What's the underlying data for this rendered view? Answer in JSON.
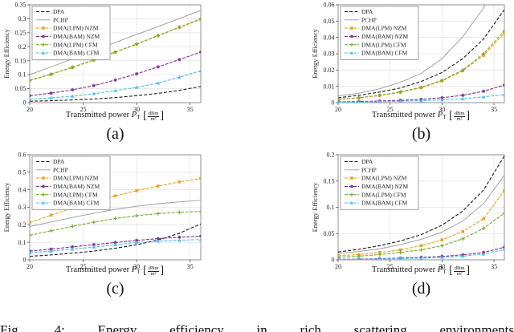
{
  "caption": "Fig. 4: Energy efficiency in rich scattering environments",
  "sub_labels": [
    "(a)",
    "(b)",
    "(c)",
    "(d)"
  ],
  "axes": {
    "ylabel": "Energy Efficiency",
    "x_prefix": "Transmitted power",
    "x_symbol": "P",
    "x_symbol_sub": "T",
    "bracket_open": "[",
    "bracket_close": "]",
    "x_unit_numerator": "dBm",
    "x_unit_denominator": "m²"
  },
  "legend": [
    "DPA",
    "PCHP",
    "DMA(LPM) NZM",
    "DMA(BAM) NZM",
    "DMA(LPM) CFM",
    "DMA(BAM) CFM"
  ],
  "series_styles": {
    "DPA": {
      "color": "#1a1a1a",
      "dash": "4 2.2",
      "marker": "none",
      "width": 1.1
    },
    "PCHP": {
      "color": "#9b9b9b",
      "dash": "",
      "marker": "none",
      "width": 0.9
    },
    "DMA(LPM) NZM": {
      "color": "#eda321",
      "dash": "4 1.6",
      "marker": "square",
      "width": 1.1
    },
    "DMA(BAM) NZM": {
      "color": "#7e2f8e",
      "dash": "4 1.6",
      "marker": "asterisk",
      "width": 1.1
    },
    "DMA(LPM) CFM": {
      "color": "#77ac30",
      "dash": "4 1.6",
      "marker": "plus",
      "width": 1.1
    },
    "DMA(BAM) CFM": {
      "color": "#4dbeee",
      "dash": "4 1.6",
      "marker": "triangle",
      "width": 1.1
    }
  },
  "chart_data": [
    {
      "id": "a",
      "type": "line",
      "sub_label": "(a)",
      "xlim": [
        20,
        36
      ],
      "ylim": [
        0,
        0.35
      ],
      "x_ticks": [
        20,
        25,
        30,
        35
      ],
      "x_tick_labels": [
        "20",
        "25",
        "30",
        "35"
      ],
      "y_tick_values": [
        0,
        0.05,
        0.1,
        0.15,
        0.2,
        0.25,
        0.3,
        0.35
      ],
      "y_tick_labels": [
        "0",
        "0.05",
        "0.1",
        "0.15",
        "0.2",
        "0.25",
        "0.3",
        "0.35"
      ],
      "x": [
        20,
        22,
        24,
        26,
        28,
        30,
        32,
        34,
        36
      ],
      "series": {
        "DPA": [
          0.005,
          0.007,
          0.01,
          0.013,
          0.018,
          0.025,
          0.033,
          0.044,
          0.058
        ],
        "PCHP": [
          0.1,
          0.128,
          0.157,
          0.186,
          0.215,
          0.244,
          0.272,
          0.301,
          0.33
        ],
        "DMA(LPM) NZM": [
          0.079,
          0.101,
          0.126,
          0.152,
          0.18,
          0.209,
          0.239,
          0.269,
          0.298
        ],
        "DMA(BAM) NZM": [
          0.025,
          0.034,
          0.046,
          0.061,
          0.081,
          0.103,
          0.128,
          0.154,
          0.181
        ],
        "DMA(LPM) CFM": [
          0.08,
          0.102,
          0.127,
          0.153,
          0.181,
          0.21,
          0.24,
          0.27,
          0.3
        ],
        "DMA(BAM) CFM": [
          0.012,
          0.017,
          0.023,
          0.032,
          0.043,
          0.055,
          0.07,
          0.091,
          0.114
        ]
      }
    },
    {
      "id": "b",
      "type": "line",
      "sub_label": "(b)",
      "xlim": [
        20,
        36
      ],
      "ylim": [
        0,
        0.06
      ],
      "x_ticks": [
        20,
        25,
        30,
        35
      ],
      "x_tick_labels": [
        "20",
        "25",
        "30",
        "35"
      ],
      "y_tick_values": [
        0,
        0.01,
        0.02,
        0.03,
        0.04,
        0.05,
        0.06
      ],
      "y_tick_labels": [
        "0",
        "0.01",
        "0.02",
        "0.03",
        "0.04",
        "0.05",
        "0.06"
      ],
      "x": [
        20,
        22,
        24,
        26,
        28,
        30,
        32,
        34,
        36
      ],
      "series": {
        "DPA": [
          0.003,
          0.0045,
          0.0065,
          0.009,
          0.013,
          0.0185,
          0.027,
          0.039,
          0.057
        ],
        "PCHP": [
          0.004,
          0.0058,
          0.0085,
          0.0125,
          0.018,
          0.027,
          0.0405,
          0.058,
          0.085
        ],
        "DMA(LPM) NZM": [
          0.002,
          0.0029,
          0.0044,
          0.0064,
          0.0091,
          0.0133,
          0.0195,
          0.029,
          0.0425
        ],
        "DMA(BAM) NZM": [
          0.0005,
          0.0007,
          0.001,
          0.0014,
          0.002,
          0.003,
          0.0045,
          0.007,
          0.0108
        ],
        "DMA(LPM) CFM": [
          0.0021,
          0.003,
          0.0045,
          0.0066,
          0.0094,
          0.0137,
          0.02,
          0.03,
          0.044
        ],
        "DMA(BAM) CFM": [
          0.0003,
          0.0004,
          0.0006,
          0.0009,
          0.0012,
          0.0017,
          0.0024,
          0.0035,
          0.005
        ]
      }
    },
    {
      "id": "c",
      "type": "line",
      "sub_label": "(c)",
      "xlim": [
        20,
        36
      ],
      "ylim": [
        0,
        0.6
      ],
      "x_ticks": [
        20,
        25,
        30,
        35
      ],
      "x_tick_labels": [
        "20",
        "25",
        "30",
        "35"
      ],
      "y_tick_values": [
        0,
        0.1,
        0.2,
        0.3,
        0.4,
        0.5,
        0.6
      ],
      "y_tick_labels": [
        "0",
        "0.1",
        "0.2",
        "0.3",
        "0.4",
        "0.5",
        "0.6"
      ],
      "x": [
        20,
        22,
        24,
        26,
        28,
        30,
        32,
        34,
        36
      ],
      "series": {
        "DPA": [
          0.02,
          0.028,
          0.038,
          0.05,
          0.066,
          0.086,
          0.113,
          0.152,
          0.205
        ],
        "PCHP": [
          0.19,
          0.216,
          0.242,
          0.266,
          0.288,
          0.306,
          0.32,
          0.331,
          0.34
        ],
        "DMA(LPM) NZM": [
          0.212,
          0.255,
          0.295,
          0.332,
          0.365,
          0.395,
          0.421,
          0.445,
          0.465
        ],
        "DMA(BAM) NZM": [
          0.05,
          0.061,
          0.074,
          0.087,
          0.099,
          0.111,
          0.121,
          0.129,
          0.135
        ],
        "DMA(LPM) CFM": [
          0.14,
          0.166,
          0.191,
          0.215,
          0.236,
          0.252,
          0.264,
          0.272,
          0.276
        ],
        "DMA(BAM) CFM": [
          0.04,
          0.05,
          0.061,
          0.073,
          0.086,
          0.099,
          0.107,
          0.112,
          0.116
        ]
      }
    },
    {
      "id": "d",
      "type": "line",
      "sub_label": "(d)",
      "xlim": [
        20,
        36
      ],
      "ylim": [
        0,
        0.2
      ],
      "x_ticks": [
        20,
        25,
        30,
        35
      ],
      "x_tick_labels": [
        "20",
        "25",
        "30",
        "35"
      ],
      "y_tick_values": [
        0,
        0.05,
        0.1,
        0.15,
        0.2
      ],
      "y_tick_labels": [
        "0",
        "0.05",
        "0.1",
        "0.15",
        "0.2"
      ],
      "x": [
        20,
        22,
        24,
        26,
        28,
        30,
        32,
        34,
        36
      ],
      "series": {
        "DPA": [
          0.015,
          0.02,
          0.027,
          0.036,
          0.048,
          0.066,
          0.093,
          0.133,
          0.198
        ],
        "PCHP": [
          0.012,
          0.016,
          0.021,
          0.029,
          0.039,
          0.053,
          0.074,
          0.107,
          0.161
        ],
        "DMA(LPM) NZM": [
          0.008,
          0.01,
          0.014,
          0.019,
          0.027,
          0.038,
          0.054,
          0.078,
          0.132
        ],
        "DMA(BAM) NZM": [
          0.001,
          0.0015,
          0.0022,
          0.0032,
          0.0046,
          0.0065,
          0.0095,
          0.014,
          0.024
        ],
        "DMA(LPM) CFM": [
          0.005,
          0.007,
          0.01,
          0.014,
          0.019,
          0.027,
          0.04,
          0.06,
          0.089
        ],
        "DMA(BAM) CFM": [
          0.0008,
          0.0011,
          0.0016,
          0.0022,
          0.0032,
          0.0047,
          0.007,
          0.011,
          0.02
        ]
      }
    }
  ]
}
